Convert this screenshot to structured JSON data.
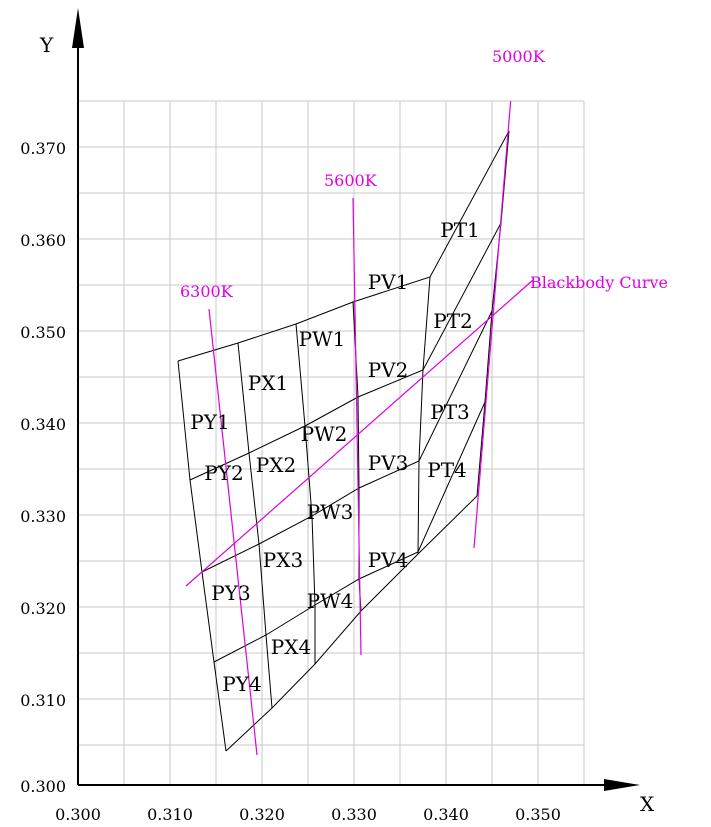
{
  "axes": {
    "x_title": "X",
    "y_title": "Y",
    "x_ticks": [
      "0.300",
      "0.310",
      "0.320",
      "0.330",
      "0.340",
      "0.350"
    ],
    "y_ticks": [
      "0.300",
      "0.310",
      "0.320",
      "0.330",
      "0.340",
      "0.350",
      "0.360",
      "0.370"
    ],
    "xlim": [
      0.3,
      0.355
    ],
    "ylim": [
      0.3,
      0.375
    ]
  },
  "cct_lines": [
    {
      "label": "6300K",
      "color": "#e000e0"
    },
    {
      "label": "5600K",
      "color": "#e000e0"
    },
    {
      "label": "5000K",
      "color": "#e000e0"
    }
  ],
  "blackbody": {
    "label": "Blackbody Curve",
    "color": "#e000e0"
  },
  "bins": [
    {
      "label": "PY1"
    },
    {
      "label": "PY2"
    },
    {
      "label": "PY3"
    },
    {
      "label": "PY4"
    },
    {
      "label": "PX1"
    },
    {
      "label": "PX2"
    },
    {
      "label": "PX3"
    },
    {
      "label": "PX4"
    },
    {
      "label": "PW1"
    },
    {
      "label": "PW2"
    },
    {
      "label": "PW3"
    },
    {
      "label": "PW4"
    },
    {
      "label": "PV1"
    },
    {
      "label": "PV2"
    },
    {
      "label": "PV3"
    },
    {
      "label": "PV4"
    },
    {
      "label": "PT1"
    },
    {
      "label": "PT2"
    },
    {
      "label": "PT3"
    },
    {
      "label": "PT4"
    }
  ]
}
